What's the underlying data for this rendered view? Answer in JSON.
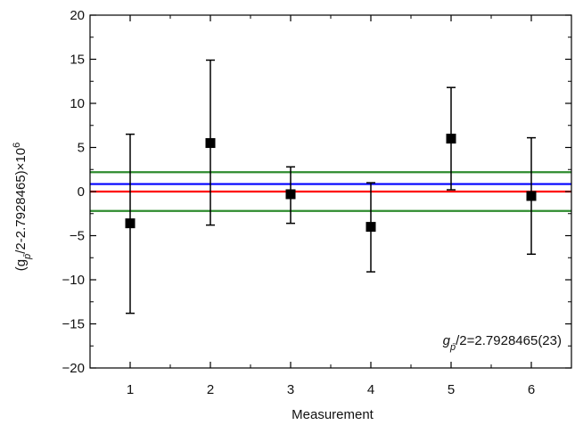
{
  "chart_data": {
    "type": "scatter",
    "xlabel": "Measurement",
    "ylabel_parts": [
      "(g",
      "p̄",
      "/2-2.7928465)×10",
      "6"
    ],
    "annotation_parts": [
      "g",
      "p̄",
      "/2=2.7928465(23)"
    ],
    "xlim": [
      0.5,
      6.5
    ],
    "ylim": [
      -20,
      20
    ],
    "x_ticks": [
      1,
      2,
      3,
      4,
      5,
      6
    ],
    "y_ticks": [
      -20,
      -15,
      -10,
      -5,
      0,
      5,
      10,
      15,
      20
    ],
    "grid": false,
    "legend": "none",
    "series": [
      {
        "marker": "square",
        "color": "#000000",
        "x": [
          1,
          2,
          3,
          4,
          5,
          6
        ],
        "y": [
          -3.6,
          5.5,
          -0.3,
          -4.0,
          6.0,
          -0.5
        ],
        "err_low": [
          -13.8,
          -3.8,
          -3.6,
          -9.1,
          0.2,
          -7.1
        ],
        "err_high": [
          6.5,
          14.9,
          2.8,
          1.0,
          11.8,
          6.1
        ]
      }
    ],
    "reference_lines": [
      {
        "y": 2.2,
        "color": "#2e8b2e"
      },
      {
        "y": 0.85,
        "color": "#0000ff"
      },
      {
        "y": 0.0,
        "color": "#ff0000"
      },
      {
        "y": -2.2,
        "color": "#2e8b2e"
      }
    ]
  }
}
